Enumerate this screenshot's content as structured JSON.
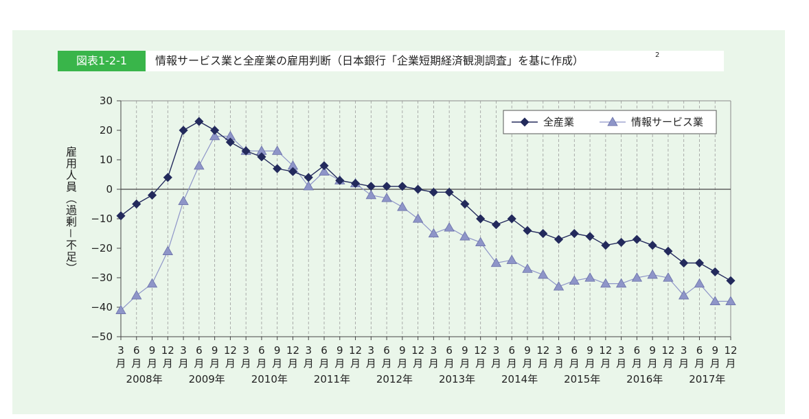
{
  "figure_label": "図表1-2-1",
  "title": "情報サービス業と全産業の雇用判断（日本銀行「企業短期経済観測調査」を基に作成）",
  "title_note": "2",
  "chart_data": {
    "type": "line",
    "title": "情報サービス業と全産業の雇用判断（日本銀行「企業短期経済観測調査」を基に作成）",
    "xlabel": "",
    "ylabel": "雇用人員（過剰－不足）",
    "ylim": [
      -50,
      30
    ],
    "yticks": [
      30,
      20,
      10,
      0,
      -10,
      -20,
      -30,
      -40,
      -50
    ],
    "ytick_labels": [
      "30",
      "20",
      "10",
      "0",
      "−10",
      "−20",
      "−30",
      "−40",
      "−50"
    ],
    "grid": "vertical dashed",
    "legend_position": "top-right",
    "month_unit": "月",
    "month_labels": [
      "3",
      "6",
      "9",
      "12",
      "3",
      "6",
      "9",
      "12",
      "3",
      "6",
      "9",
      "12",
      "3",
      "6",
      "9",
      "12",
      "3",
      "6",
      "9",
      "12",
      "3",
      "6",
      "9",
      "12",
      "3",
      "6",
      "9",
      "12",
      "3",
      "6",
      "9",
      "12",
      "3",
      "6",
      "9",
      "12",
      "3",
      "6",
      "9",
      "12"
    ],
    "years": [
      "2008年",
      "2009年",
      "2010年",
      "2011年",
      "2012年",
      "2013年",
      "2014年",
      "2015年",
      "2016年",
      "2017年"
    ],
    "series": [
      {
        "name": "全産業",
        "color": "#232a5c",
        "marker": "diamond",
        "values": [
          -9,
          -5,
          -2,
          4,
          20,
          23,
          20,
          16,
          13,
          11,
          7,
          6,
          4,
          8,
          3,
          2,
          1,
          1,
          1,
          0,
          -1,
          -1,
          -5,
          -10,
          -12,
          -10,
          -14,
          -15,
          -17,
          -15,
          -16,
          -19,
          -18,
          -17,
          -19,
          -21,
          -25,
          -25,
          -28,
          -31
        ]
      },
      {
        "name": "情報サービス業",
        "color": "#8e95c8",
        "marker": "triangle",
        "values": [
          -41,
          -36,
          -32,
          -21,
          -4,
          8,
          18,
          18,
          13,
          13,
          13,
          8,
          1,
          6,
          3,
          2,
          -2,
          -3,
          -6,
          -10,
          -15,
          -13,
          -16,
          -18,
          -25,
          -24,
          -27,
          -29,
          -33,
          -31,
          -30,
          -32,
          -32,
          -30,
          -29,
          -30,
          -36,
          -32,
          -38,
          -38
        ]
      }
    ]
  }
}
